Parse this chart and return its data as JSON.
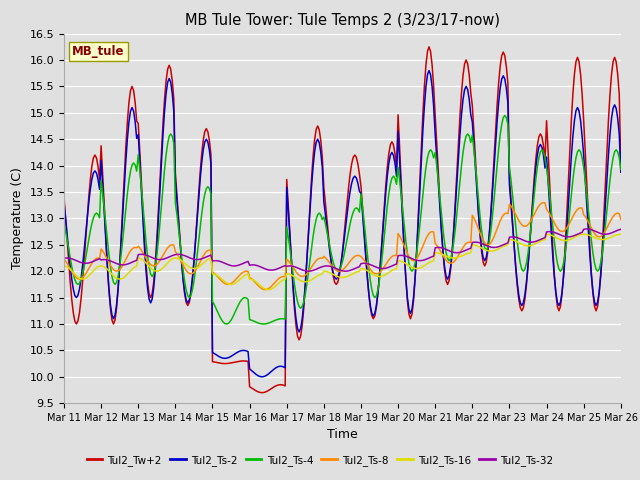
{
  "title": "MB Tule Tower: Tule Temps 2 (3/23/17-now)",
  "xlabel": "Time",
  "ylabel": "Temperature (C)",
  "ylim": [
    9.5,
    16.5
  ],
  "background_color": "#e0e0e0",
  "grid_color": "white",
  "series_colors": {
    "Tul2_Tw+2": "#cc0000",
    "Tul2_Ts-2": "#0000cc",
    "Tul2_Ts-4": "#00bb00",
    "Tul2_Ts-8": "#ff8800",
    "Tul2_Ts-16": "#dddd00",
    "Tul2_Ts-32": "#9900aa"
  },
  "xtick_labels": [
    "Mar 11",
    "Mar 12",
    "Mar 13",
    "Mar 14",
    "Mar 15",
    "Mar 16",
    "Mar 17",
    "Mar 18",
    "Mar 19",
    "Mar 20",
    "Mar 21",
    "Mar 22",
    "Mar 23",
    "Mar 24",
    "Mar 25",
    "Mar 26"
  ],
  "station_label": "MB_tule",
  "legend_entries": [
    "Tul2_Tw+2",
    "Tul2_Ts-2",
    "Tul2_Ts-4",
    "Tul2_Ts-8",
    "Tul2_Ts-16",
    "Tul2_Ts-32"
  ]
}
